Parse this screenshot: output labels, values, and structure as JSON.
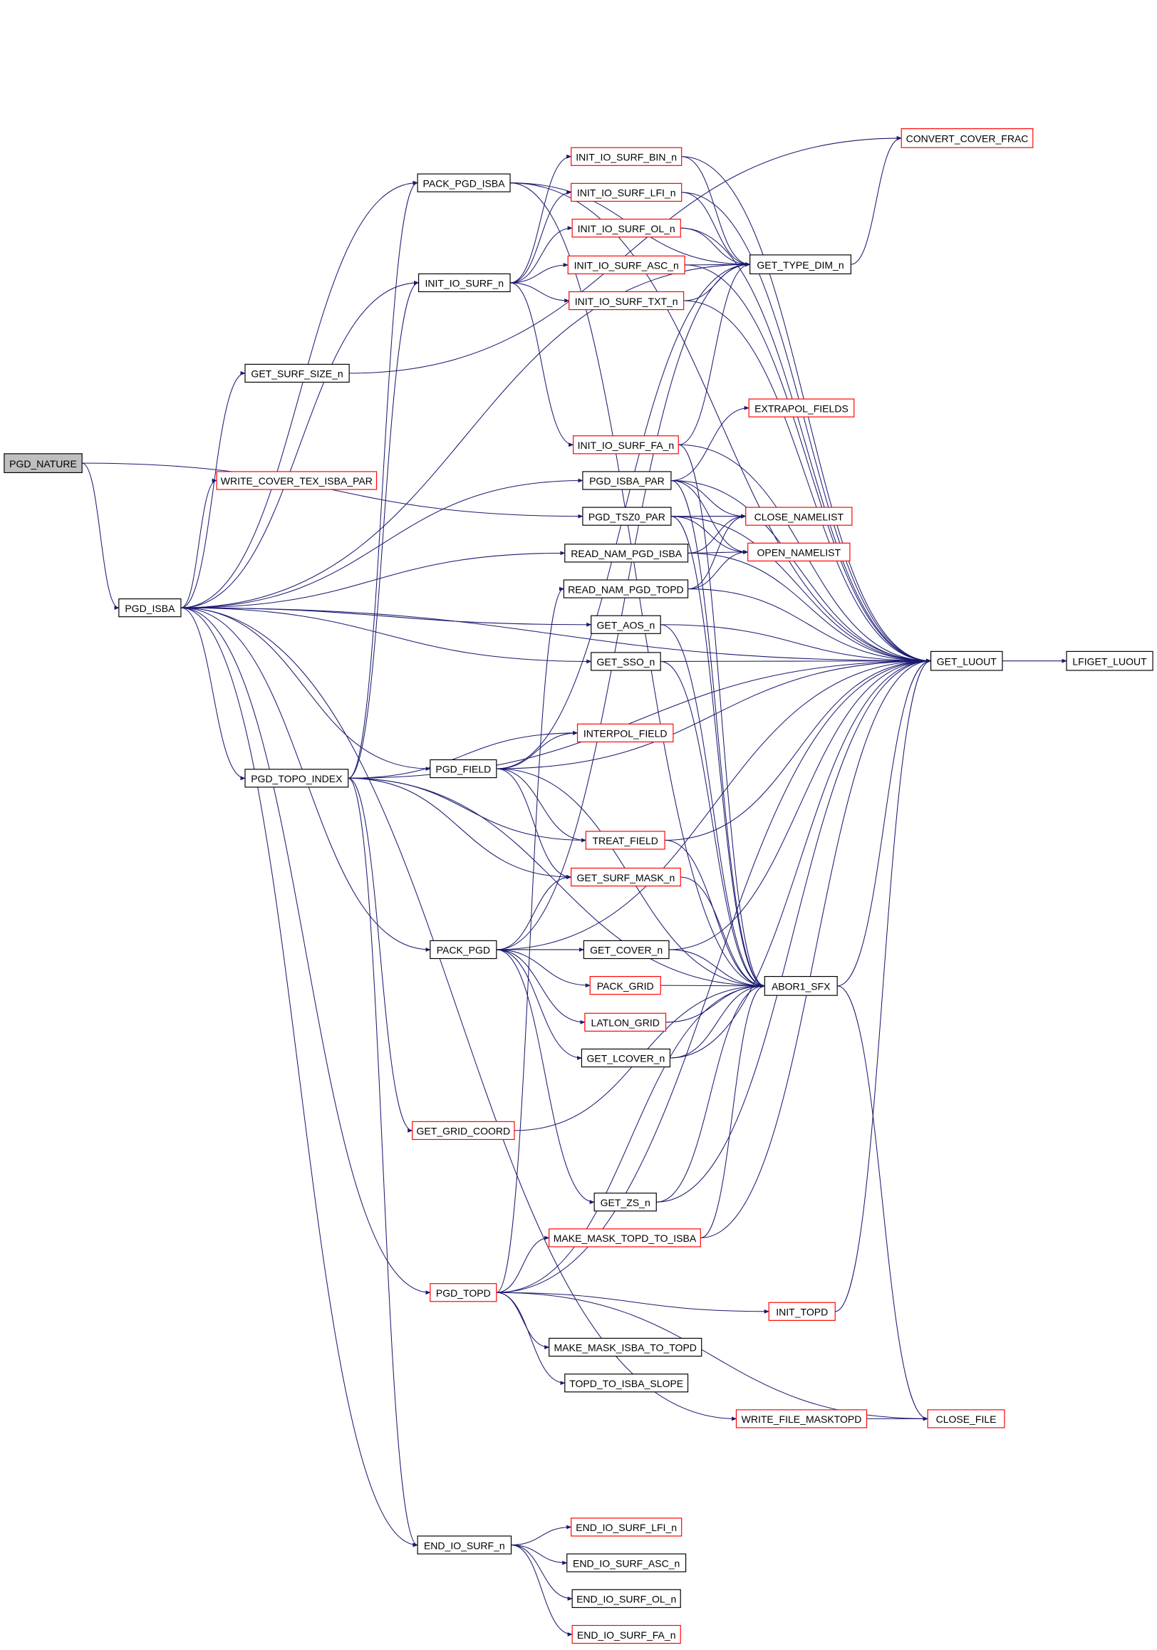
{
  "colors": {
    "edge": "#191970",
    "node_border": "#000000",
    "undocumented_border": "#ff0000",
    "root_fill": "#bfbfbf"
  },
  "nodes": [
    {
      "id": "PGD_NATURE",
      "label": "PGD_NATURE",
      "style": "root"
    },
    {
      "id": "PGD_ISBA",
      "label": "PGD_ISBA"
    },
    {
      "id": "GET_SURF_SIZE_n",
      "label": "GET_SURF_SIZE_n"
    },
    {
      "id": "WRITE_COVER_TEX_ISBA_PAR",
      "label": "WRITE_COVER_TEX_ISBA_PAR",
      "style": "red"
    },
    {
      "id": "PACK_PGD_ISBA",
      "label": "PACK_PGD_ISBA"
    },
    {
      "id": "INIT_IO_SURF_n",
      "label": "INIT_IO_SURF_n"
    },
    {
      "id": "CONVERT_COVER_FRAC",
      "label": "CONVERT_COVER_FRAC",
      "style": "red"
    },
    {
      "id": "INIT_IO_SURF_BIN_n",
      "label": "INIT_IO_SURF_BIN_n",
      "style": "red"
    },
    {
      "id": "INIT_IO_SURF_LFI_n",
      "label": "INIT_IO_SURF_LFI_n",
      "style": "red"
    },
    {
      "id": "INIT_IO_SURF_OL_n",
      "label": "INIT_IO_SURF_OL_n",
      "style": "red"
    },
    {
      "id": "INIT_IO_SURF_ASC_n",
      "label": "INIT_IO_SURF_ASC_n",
      "style": "red"
    },
    {
      "id": "INIT_IO_SURF_TXT_n",
      "label": "INIT_IO_SURF_TXT_n",
      "style": "red"
    },
    {
      "id": "GET_TYPE_DIM_n",
      "label": "GET_TYPE_DIM_n"
    },
    {
      "id": "EXTRAPOL_FIELDS",
      "label": "EXTRAPOL_FIELDS",
      "style": "red"
    },
    {
      "id": "INIT_IO_SURF_FA_n",
      "label": "INIT_IO_SURF_FA_n",
      "style": "red"
    },
    {
      "id": "PGD_ISBA_PAR",
      "label": "PGD_ISBA_PAR"
    },
    {
      "id": "PGD_TSZ0_PAR",
      "label": "PGD_TSZ0_PAR"
    },
    {
      "id": "CLOSE_NAMELIST",
      "label": "CLOSE_NAMELIST",
      "style": "red"
    },
    {
      "id": "OPEN_NAMELIST",
      "label": "OPEN_NAMELIST",
      "style": "red"
    },
    {
      "id": "READ_NAM_PGD_ISBA",
      "label": "READ_NAM_PGD_ISBA"
    },
    {
      "id": "READ_NAM_PGD_TOPD",
      "label": "READ_NAM_PGD_TOPD"
    },
    {
      "id": "GET_AOS_n",
      "label": "GET_AOS_n"
    },
    {
      "id": "GET_SSO_n",
      "label": "GET_SSO_n"
    },
    {
      "id": "GET_LUOUT",
      "label": "GET_LUOUT"
    },
    {
      "id": "LFIGET_LUOUT",
      "label": "LFIGET_LUOUT"
    },
    {
      "id": "INTERPOL_FIELD",
      "label": "INTERPOL_FIELD",
      "style": "red"
    },
    {
      "id": "PGD_TOPO_INDEX",
      "label": "PGD_TOPO_INDEX"
    },
    {
      "id": "PGD_FIELD",
      "label": "PGD_FIELD"
    },
    {
      "id": "TREAT_FIELD",
      "label": "TREAT_FIELD",
      "style": "red"
    },
    {
      "id": "GET_SURF_MASK_n",
      "label": "GET_SURF_MASK_n",
      "style": "red"
    },
    {
      "id": "PACK_PGD",
      "label": "PACK_PGD"
    },
    {
      "id": "GET_COVER_n",
      "label": "GET_COVER_n"
    },
    {
      "id": "ABOR1_SFX",
      "label": "ABOR1_SFX"
    },
    {
      "id": "PACK_GRID",
      "label": "PACK_GRID",
      "style": "red"
    },
    {
      "id": "LATLON_GRID",
      "label": "LATLON_GRID",
      "style": "red"
    },
    {
      "id": "GET_LCOVER_n",
      "label": "GET_LCOVER_n"
    },
    {
      "id": "GET_GRID_COORD",
      "label": "GET_GRID_COORD",
      "style": "red"
    },
    {
      "id": "GET_ZS_n",
      "label": "GET_ZS_n"
    },
    {
      "id": "MAKE_MASK_TOPD_TO_ISBA",
      "label": "MAKE_MASK_TOPD_TO_ISBA",
      "style": "red"
    },
    {
      "id": "PGD_TOPD",
      "label": "PGD_TOPD",
      "style": "red"
    },
    {
      "id": "INIT_TOPD",
      "label": "INIT_TOPD",
      "style": "red"
    },
    {
      "id": "MAKE_MASK_ISBA_TO_TOPD",
      "label": "MAKE_MASK_ISBA_TO_TOPD"
    },
    {
      "id": "TOPD_TO_ISBA_SLOPE",
      "label": "TOPD_TO_ISBA_SLOPE"
    },
    {
      "id": "WRITE_FILE_MASKTOPD",
      "label": "WRITE_FILE_MASKTOPD",
      "style": "red"
    },
    {
      "id": "CLOSE_FILE",
      "label": "CLOSE_FILE",
      "style": "red"
    },
    {
      "id": "END_IO_SURF_n",
      "label": "END_IO_SURF_n"
    },
    {
      "id": "END_IO_SURF_LFI_n",
      "label": "END_IO_SURF_LFI_n",
      "style": "red"
    },
    {
      "id": "END_IO_SURF_ASC_n",
      "label": "END_IO_SURF_ASC_n"
    },
    {
      "id": "END_IO_SURF_OL_n",
      "label": "END_IO_SURF_OL_n"
    },
    {
      "id": "END_IO_SURF_FA_n",
      "label": "END_IO_SURF_FA_n",
      "style": "red"
    }
  ],
  "edges": [
    [
      "PGD_NATURE",
      "PGD_ISBA"
    ],
    [
      "PGD_NATURE",
      "PGD_TSZ0_PAR"
    ],
    [
      "PGD_ISBA",
      "GET_SURF_SIZE_n"
    ],
    [
      "PGD_ISBA",
      "WRITE_COVER_TEX_ISBA_PAR"
    ],
    [
      "PGD_ISBA",
      "PACK_PGD_ISBA"
    ],
    [
      "PGD_ISBA",
      "INIT_IO_SURF_n"
    ],
    [
      "PGD_ISBA",
      "PGD_ISBA_PAR"
    ],
    [
      "PGD_ISBA",
      "READ_NAM_PGD_ISBA"
    ],
    [
      "PGD_ISBA",
      "GET_AOS_n"
    ],
    [
      "PGD_ISBA",
      "GET_SSO_n"
    ],
    [
      "PGD_ISBA",
      "PGD_TOPO_INDEX"
    ],
    [
      "PGD_ISBA",
      "PGD_FIELD"
    ],
    [
      "PGD_ISBA",
      "PACK_PGD"
    ],
    [
      "PGD_ISBA",
      "PGD_TOPD"
    ],
    [
      "PGD_ISBA",
      "WRITE_FILE_MASKTOPD"
    ],
    [
      "PGD_ISBA",
      "END_IO_SURF_n"
    ],
    [
      "PGD_ISBA",
      "GET_TYPE_DIM_n"
    ],
    [
      "PGD_ISBA",
      "GET_LUOUT"
    ],
    [
      "GET_SURF_SIZE_n",
      "CONVERT_COVER_FRAC"
    ],
    [
      "PACK_PGD_ISBA",
      "GET_TYPE_DIM_n"
    ],
    [
      "PACK_PGD_ISBA",
      "GET_LUOUT"
    ],
    [
      "PACK_PGD_ISBA",
      "ABOR1_SFX"
    ],
    [
      "INIT_IO_SURF_n",
      "INIT_IO_SURF_BIN_n"
    ],
    [
      "INIT_IO_SURF_n",
      "INIT_IO_SURF_LFI_n"
    ],
    [
      "INIT_IO_SURF_n",
      "INIT_IO_SURF_OL_n"
    ],
    [
      "INIT_IO_SURF_n",
      "INIT_IO_SURF_ASC_n"
    ],
    [
      "INIT_IO_SURF_n",
      "INIT_IO_SURF_TXT_n"
    ],
    [
      "INIT_IO_SURF_n",
      "INIT_IO_SURF_FA_n"
    ],
    [
      "INIT_IO_SURF_BIN_n",
      "GET_TYPE_DIM_n"
    ],
    [
      "INIT_IO_SURF_BIN_n",
      "GET_LUOUT"
    ],
    [
      "INIT_IO_SURF_LFI_n",
      "GET_TYPE_DIM_n"
    ],
    [
      "INIT_IO_SURF_LFI_n",
      "GET_LUOUT"
    ],
    [
      "INIT_IO_SURF_OL_n",
      "GET_TYPE_DIM_n"
    ],
    [
      "INIT_IO_SURF_OL_n",
      "GET_LUOUT"
    ],
    [
      "INIT_IO_SURF_ASC_n",
      "GET_TYPE_DIM_n"
    ],
    [
      "INIT_IO_SURF_ASC_n",
      "GET_LUOUT"
    ],
    [
      "INIT_IO_SURF_TXT_n",
      "GET_TYPE_DIM_n"
    ],
    [
      "INIT_IO_SURF_TXT_n",
      "GET_LUOUT"
    ],
    [
      "INIT_IO_SURF_FA_n",
      "GET_TYPE_DIM_n"
    ],
    [
      "INIT_IO_SURF_FA_n",
      "GET_LUOUT"
    ],
    [
      "INIT_IO_SURF_FA_n",
      "ABOR1_SFX"
    ],
    [
      "GET_TYPE_DIM_n",
      "CONVERT_COVER_FRAC"
    ],
    [
      "PGD_ISBA_PAR",
      "EXTRAPOL_FIELDS"
    ],
    [
      "PGD_ISBA_PAR",
      "CLOSE_NAMELIST"
    ],
    [
      "PGD_ISBA_PAR",
      "OPEN_NAMELIST"
    ],
    [
      "PGD_ISBA_PAR",
      "GET_LUOUT"
    ],
    [
      "PGD_ISBA_PAR",
      "ABOR1_SFX"
    ],
    [
      "PGD_TSZ0_PAR",
      "CLOSE_NAMELIST"
    ],
    [
      "PGD_TSZ0_PAR",
      "OPEN_NAMELIST"
    ],
    [
      "PGD_TSZ0_PAR",
      "GET_LUOUT"
    ],
    [
      "PGD_TSZ0_PAR",
      "ABOR1_SFX"
    ],
    [
      "READ_NAM_PGD_ISBA",
      "OPEN_NAMELIST"
    ],
    [
      "READ_NAM_PGD_ISBA",
      "CLOSE_NAMELIST"
    ],
    [
      "READ_NAM_PGD_ISBA",
      "GET_LUOUT"
    ],
    [
      "READ_NAM_PGD_TOPD",
      "OPEN_NAMELIST"
    ],
    [
      "READ_NAM_PGD_TOPD",
      "CLOSE_NAMELIST"
    ],
    [
      "READ_NAM_PGD_TOPD",
      "GET_LUOUT"
    ],
    [
      "GET_AOS_n",
      "GET_LUOUT"
    ],
    [
      "GET_AOS_n",
      "ABOR1_SFX"
    ],
    [
      "GET_SSO_n",
      "GET_LUOUT"
    ],
    [
      "GET_SSO_n",
      "ABOR1_SFX"
    ],
    [
      "GET_LUOUT",
      "LFIGET_LUOUT"
    ],
    [
      "PGD_TOPO_INDEX",
      "INIT_IO_SURF_n"
    ],
    [
      "PGD_TOPO_INDEX",
      "GET_LUOUT"
    ],
    [
      "PGD_TOPO_INDEX",
      "INTERPOL_FIELD"
    ],
    [
      "PGD_TOPO_INDEX",
      "TREAT_FIELD"
    ],
    [
      "PGD_TOPO_INDEX",
      "GET_SURF_MASK_n"
    ],
    [
      "PGD_TOPO_INDEX",
      "ABOR1_SFX"
    ],
    [
      "PGD_TOPO_INDEX",
      "GET_GRID_COORD"
    ],
    [
      "PGD_TOPO_INDEX",
      "END_IO_SURF_n"
    ],
    [
      "PGD_TOPO_INDEX",
      "PACK_PGD_ISBA"
    ],
    [
      "PGD_FIELD",
      "INTERPOL_FIELD"
    ],
    [
      "PGD_FIELD",
      "GET_LUOUT"
    ],
    [
      "PGD_FIELD",
      "TREAT_FIELD"
    ],
    [
      "PGD_FIELD",
      "GET_SURF_MASK_n"
    ],
    [
      "PGD_FIELD",
      "ABOR1_SFX"
    ],
    [
      "PGD_FIELD",
      "GET_TYPE_DIM_n"
    ],
    [
      "TREAT_FIELD",
      "GET_LUOUT"
    ],
    [
      "TREAT_FIELD",
      "ABOR1_SFX"
    ],
    [
      "GET_SURF_MASK_n",
      "ABOR1_SFX"
    ],
    [
      "PACK_PGD",
      "GET_COVER_n"
    ],
    [
      "PACK_PGD",
      "PACK_GRID"
    ],
    [
      "PACK_PGD",
      "LATLON_GRID"
    ],
    [
      "PACK_PGD",
      "GET_LCOVER_n"
    ],
    [
      "PACK_PGD",
      "GET_ZS_n"
    ],
    [
      "PACK_PGD",
      "GET_SURF_MASK_n"
    ],
    [
      "PACK_PGD",
      "GET_LUOUT"
    ],
    [
      "PACK_PGD",
      "GET_TYPE_DIM_n"
    ],
    [
      "GET_COVER_n",
      "ABOR1_SFX"
    ],
    [
      "GET_COVER_n",
      "GET_LUOUT"
    ],
    [
      "PACK_GRID",
      "ABOR1_SFX"
    ],
    [
      "LATLON_GRID",
      "ABOR1_SFX"
    ],
    [
      "GET_LCOVER_n",
      "ABOR1_SFX"
    ],
    [
      "GET_LCOVER_n",
      "GET_LUOUT"
    ],
    [
      "ABOR1_SFX",
      "GET_LUOUT"
    ],
    [
      "ABOR1_SFX",
      "CLOSE_FILE"
    ],
    [
      "GET_GRID_COORD",
      "ABOR1_SFX"
    ],
    [
      "GET_ZS_n",
      "ABOR1_SFX"
    ],
    [
      "GET_ZS_n",
      "GET_LUOUT"
    ],
    [
      "MAKE_MASK_TOPD_TO_ISBA",
      "ABOR1_SFX"
    ],
    [
      "MAKE_MASK_TOPD_TO_ISBA",
      "GET_LUOUT"
    ],
    [
      "PGD_TOPD",
      "MAKE_MASK_TOPD_TO_ISBA"
    ],
    [
      "PGD_TOPD",
      "INIT_TOPD"
    ],
    [
      "PGD_TOPD",
      "MAKE_MASK_ISBA_TO_TOPD"
    ],
    [
      "PGD_TOPD",
      "TOPD_TO_ISBA_SLOPE"
    ],
    [
      "PGD_TOPD",
      "CLOSE_FILE"
    ],
    [
      "PGD_TOPD",
      "GET_LUOUT"
    ],
    [
      "PGD_TOPD",
      "ABOR1_SFX"
    ],
    [
      "PGD_TOPD",
      "READ_NAM_PGD_TOPD"
    ],
    [
      "INIT_TOPD",
      "GET_LUOUT"
    ],
    [
      "WRITE_FILE_MASKTOPD",
      "CLOSE_FILE"
    ],
    [
      "END_IO_SURF_n",
      "END_IO_SURF_LFI_n"
    ],
    [
      "END_IO_SURF_n",
      "END_IO_SURF_ASC_n"
    ],
    [
      "END_IO_SURF_n",
      "END_IO_SURF_OL_n"
    ],
    [
      "END_IO_SURF_n",
      "END_IO_SURF_FA_n"
    ]
  ]
}
